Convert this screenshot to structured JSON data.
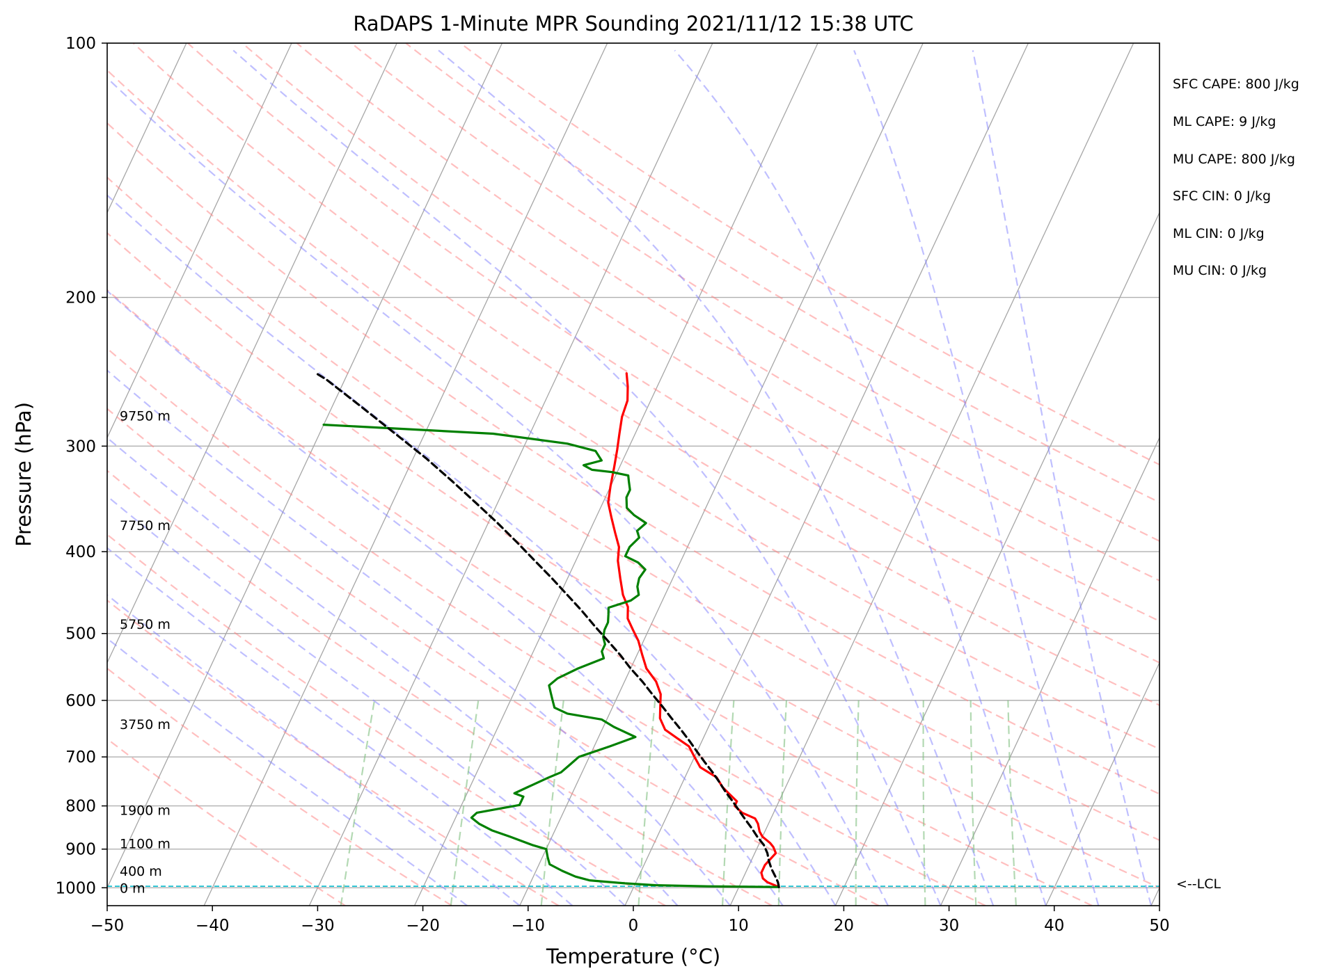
{
  "chart_data": {
    "type": "line",
    "title": "RaDAPS 1-Minute MPR Sounding 2021/11/12 15:38 UTC",
    "xlabel": "Temperature (°C)",
    "ylabel": "Pressure (hPa)",
    "xlim": [
      -50,
      50
    ],
    "ylim": [
      1050,
      100
    ],
    "y_scale": "log",
    "x_ticks": [
      "−50",
      "−40",
      "−30",
      "−20",
      "−10",
      "0",
      "10",
      "20",
      "30",
      "40",
      "50"
    ],
    "y_ticks": [
      "100",
      "200",
      "300",
      "400",
      "500",
      "600",
      "700",
      "800",
      "900",
      "1000"
    ],
    "grid": true,
    "colors": {
      "temperature": "#ff0000",
      "dewpoint": "#008000",
      "parcel": "#000000",
      "lcl": "#17becf",
      "dry_adiabats": "#ff8080",
      "moist_adiabats": "#8080ff",
      "mixing_ratio": "#80c080",
      "isotherms": "#9a9a9a"
    },
    "series": [
      {
        "name": "",
        "style": "solid",
        "color": "#ff0000",
        "points": [
          [
            13.8,
            998
          ],
          [
            12.5,
            985
          ],
          [
            11.9,
            975
          ],
          [
            11.5,
            960
          ],
          [
            11.5,
            940
          ],
          [
            12.0,
            910
          ],
          [
            11.5,
            895
          ],
          [
            11.0,
            885
          ],
          [
            10.0,
            870
          ],
          [
            9.5,
            858
          ],
          [
            9.0,
            840
          ],
          [
            8.5,
            828
          ],
          [
            7.0,
            815
          ],
          [
            6.0,
            800
          ],
          [
            6.0,
            790
          ],
          [
            5.0,
            775
          ],
          [
            4.0,
            760
          ],
          [
            3.0,
            740
          ],
          [
            1.0,
            720
          ],
          [
            0.0,
            700
          ],
          [
            -1.0,
            680
          ],
          [
            -2.5,
            665
          ],
          [
            -4.0,
            650
          ],
          [
            -5.0,
            630
          ],
          [
            -5.5,
            610
          ],
          [
            -6.0,
            590
          ],
          [
            -7.0,
            570
          ],
          [
            -8.5,
            550
          ],
          [
            -9.5,
            530
          ],
          [
            -10.5,
            510
          ],
          [
            -11.5,
            495
          ],
          [
            -12.5,
            480
          ],
          [
            -13.0,
            465
          ],
          [
            -14.0,
            450
          ],
          [
            -15.0,
            430
          ],
          [
            -16.0,
            410
          ],
          [
            -16.5,
            395
          ],
          [
            -17.5,
            380
          ],
          [
            -18.5,
            365
          ],
          [
            -19.5,
            350
          ],
          [
            -20.0,
            335
          ],
          [
            -20.5,
            318
          ],
          [
            -21.0,
            303
          ],
          [
            -21.5,
            290
          ],
          [
            -22.0,
            277
          ],
          [
            -22.2,
            265
          ],
          [
            -22.8,
            255
          ],
          [
            -23.5,
            246
          ]
        ]
      },
      {
        "name": "",
        "style": "solid",
        "color": "#008000",
        "points": [
          [
            13.8,
            998
          ],
          [
            7.0,
            996
          ],
          [
            2.0,
            993
          ],
          [
            -1.0,
            988
          ],
          [
            -4.5,
            980
          ],
          [
            -6.0,
            970
          ],
          [
            -7.5,
            955
          ],
          [
            -9.0,
            938
          ],
          [
            -9.5,
            920
          ],
          [
            -10.0,
            900
          ],
          [
            -11.5,
            890
          ],
          [
            -14.0,
            870
          ],
          [
            -16.0,
            855
          ],
          [
            -17.5,
            840
          ],
          [
            -18.5,
            826
          ],
          [
            -18.2,
            815
          ],
          [
            -14.5,
            798
          ],
          [
            -14.5,
            780
          ],
          [
            -15.5,
            773
          ],
          [
            -14.5,
            760
          ],
          [
            -13.0,
            741
          ],
          [
            -12.0,
            730
          ],
          [
            -11.5,
            715
          ],
          [
            -11.0,
            700
          ],
          [
            -8.5,
            680
          ],
          [
            -6.5,
            663
          ],
          [
            -9.0,
            645
          ],
          [
            -10.5,
            632
          ],
          [
            -14.0,
            622
          ],
          [
            -15.5,
            612
          ],
          [
            -16.0,
            600
          ],
          [
            -16.5,
            588
          ],
          [
            -17.0,
            576
          ],
          [
            -16.5,
            565
          ],
          [
            -15.0,
            550
          ],
          [
            -13.0,
            535
          ],
          [
            -13.5,
            525
          ],
          [
            -13.5,
            515
          ],
          [
            -14.0,
            505
          ],
          [
            -14.2,
            495
          ],
          [
            -14.2,
            485
          ],
          [
            -14.5,
            475
          ],
          [
            -14.8,
            466
          ],
          [
            -13.0,
            457
          ],
          [
            -12.5,
            450
          ],
          [
            -13.0,
            440
          ],
          [
            -13.2,
            430
          ],
          [
            -13.0,
            420
          ],
          [
            -14.0,
            412
          ],
          [
            -15.5,
            405
          ],
          [
            -15.5,
            395
          ],
          [
            -15.0,
            385
          ],
          [
            -15.5,
            378
          ],
          [
            -15.0,
            370
          ],
          [
            -16.5,
            362
          ],
          [
            -17.5,
            355
          ],
          [
            -18.0,
            345
          ],
          [
            -18.0,
            338
          ],
          [
            -18.5,
            330
          ],
          [
            -18.8,
            325
          ],
          [
            -20.5,
            322
          ],
          [
            -22.5,
            320
          ],
          [
            -23.5,
            316
          ],
          [
            -22.0,
            312
          ],
          [
            -23.0,
            304
          ],
          [
            -26.0,
            298
          ],
          [
            -33.5,
            290
          ],
          [
            -50,
            283
          ]
        ]
      },
      {
        "name": "",
        "style": "dashed",
        "color": "#000000",
        "points": [
          [
            13.8,
            998
          ],
          [
            13.5,
            985
          ],
          [
            13.0,
            970
          ],
          [
            12.3,
            950
          ],
          [
            11.7,
            930
          ],
          [
            11.2,
            910
          ],
          [
            10.5,
            890
          ],
          [
            9.5,
            870
          ],
          [
            8.6,
            850
          ],
          [
            7.6,
            830
          ],
          [
            6.6,
            810
          ],
          [
            5.6,
            790
          ],
          [
            4.5,
            770
          ],
          [
            3.5,
            750
          ],
          [
            2.4,
            730
          ],
          [
            1.2,
            710
          ],
          [
            0.0,
            690
          ],
          [
            -1.2,
            670
          ],
          [
            -2.5,
            650
          ],
          [
            -3.9,
            630
          ],
          [
            -5.3,
            610
          ],
          [
            -6.8,
            590
          ],
          [
            -8.3,
            570
          ],
          [
            -10.0,
            550
          ],
          [
            -11.6,
            530
          ],
          [
            -13.4,
            510
          ],
          [
            -15.3,
            490
          ],
          [
            -17.2,
            470
          ],
          [
            -19.3,
            450
          ],
          [
            -21.5,
            430
          ],
          [
            -23.9,
            410
          ],
          [
            -26.4,
            390
          ],
          [
            -29.1,
            370
          ],
          [
            -32.1,
            350
          ],
          [
            -35.3,
            330
          ],
          [
            -38.8,
            310
          ],
          [
            -42.8,
            290
          ],
          [
            -47.1,
            270
          ],
          [
            -51.8,
            250
          ],
          [
            -53.0,
            246
          ]
        ]
      }
    ],
    "lcl_pressure": 996,
    "lcl_label": "<--LCL",
    "height_labels": [
      {
        "text": "0 m",
        "p": 1000
      },
      {
        "text": "400 m",
        "p": 955
      },
      {
        "text": "1100 m",
        "p": 886
      },
      {
        "text": "1900 m",
        "p": 809
      },
      {
        "text": "3750 m",
        "p": 640
      },
      {
        "text": "5750 m",
        "p": 487
      },
      {
        "text": "7750 m",
        "p": 372
      },
      {
        "text": "9750 m",
        "p": 276
      }
    ],
    "dry_adiabats": [
      -30,
      -20,
      -10,
      0,
      10,
      20,
      30,
      40,
      50,
      60,
      70,
      80,
      90,
      100,
      110,
      120,
      130,
      140,
      150
    ],
    "moist_adiabats": [
      -15,
      -10,
      -5,
      0,
      5,
      10,
      15,
      20,
      25,
      30,
      35,
      40,
      45,
      50
    ],
    "mixing_ratio_lines": [
      0.4,
      1,
      2,
      4,
      7,
      10,
      16,
      24,
      32,
      40
    ],
    "stats": [
      "SFC CAPE: 800 J/kg",
      "ML CAPE: 9 J/kg",
      "MU CAPE: 800 J/kg",
      "SFC CIN: 0 J/kg",
      "ML CIN: 0 J/kg",
      "MU CIN: 0 J/kg"
    ]
  }
}
